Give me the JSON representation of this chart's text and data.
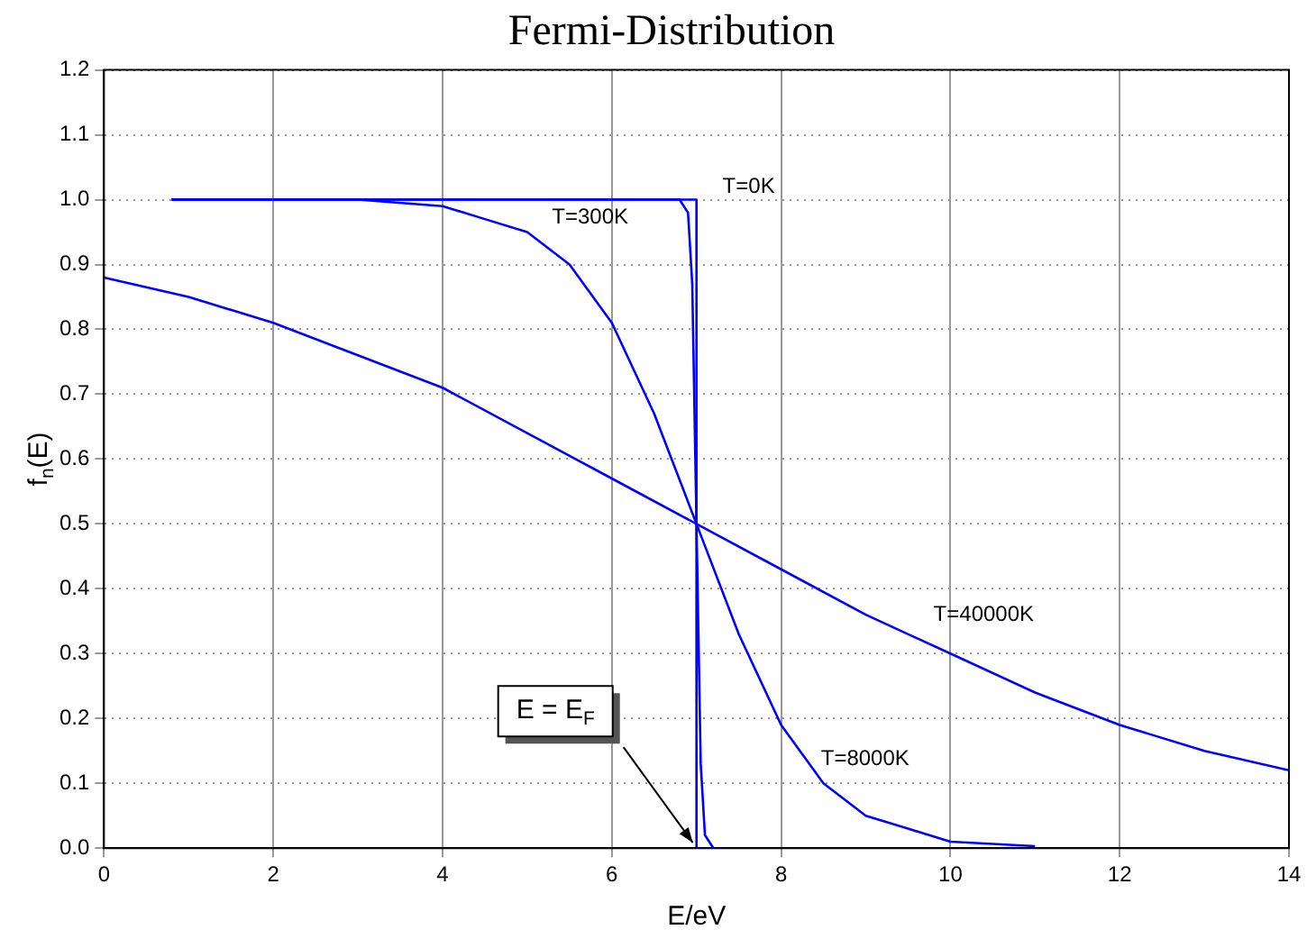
{
  "chart_data": {
    "type": "line",
    "title": "Fermi-Distribution",
    "xlabel": "E/eV",
    "ylabel": "f$_{n}$(E)",
    "xlim": [
      0,
      14
    ],
    "xticks": [
      0,
      2,
      4,
      6,
      8,
      10,
      12,
      14
    ],
    "ylim": [
      0,
      1.2
    ],
    "yticks": [
      {
        "value": 0,
        "label": "0.0"
      },
      0.1,
      0.2,
      0.3,
      0.4,
      0.5,
      0.6,
      0.7,
      0.8,
      0.9,
      {
        "value": 1,
        "label": "1.0"
      },
      1.1,
      1.2
    ],
    "grid": true,
    "legend": false,
    "marker": "none",
    "line_style": "solid",
    "series": [
      {
        "color": "#0000ff",
        "x": [
          0.8,
          7,
          7,
          7.3
        ],
        "values": [
          1,
          1,
          0,
          0
        ]
      },
      {
        "color": "#0000ff",
        "x": [
          0.8,
          6.8,
          6.9,
          6.95,
          7,
          7.05,
          7.1,
          7.2,
          7.3
        ],
        "values": [
          1,
          1,
          0.98,
          0.87,
          0.5,
          0.13,
          0.02,
          0,
          0
        ]
      },
      {
        "color": "#0000ff",
        "x": [
          0.8,
          2,
          3,
          4,
          4.5,
          5,
          5.5,
          6,
          6.5,
          7,
          7.5,
          8,
          8.5,
          9,
          9.5,
          10,
          11
        ],
        "values": [
          1,
          1,
          1,
          0.99,
          0.97,
          0.95,
          0.9,
          0.81,
          0.67,
          0.5,
          0.33,
          0.19,
          0.1,
          0.05,
          0.03,
          0.01,
          0.003
        ]
      },
      {
        "color": "#0000ff",
        "x": [
          0,
          1,
          2,
          3,
          4,
          5,
          6,
          7,
          8,
          9,
          10,
          11,
          12,
          13,
          14
        ],
        "values": [
          0.88,
          0.85,
          0.81,
          0.76,
          0.71,
          0.64,
          0.57,
          0.5,
          0.43,
          0.36,
          0.3,
          0.24,
          0.19,
          0.15,
          0.12
        ]
      }
    ],
    "annotations": [
      "T=0K",
      "T=300K",
      "T=40000K",
      "T=8000K",
      {
        "text": "E = E$_{F}$",
        "x": 7,
        "y": 0
      }
    ]
  }
}
